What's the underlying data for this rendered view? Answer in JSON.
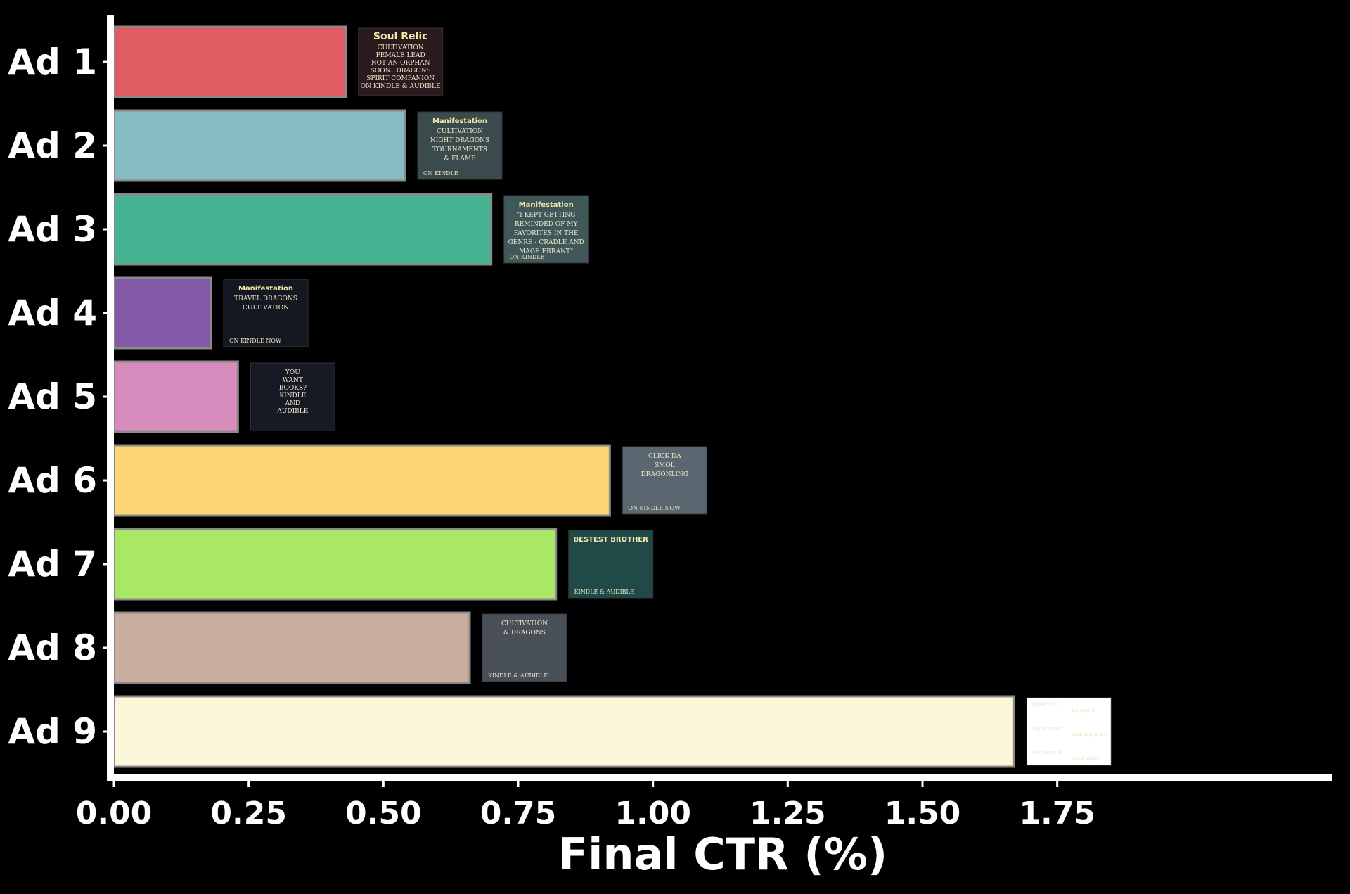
{
  "chart_data": {
    "type": "bar",
    "orientation": "horizontal",
    "categories": [
      "Ad 1",
      "Ad 2",
      "Ad 3",
      "Ad 4",
      "Ad 5",
      "Ad 6",
      "Ad 7",
      "Ad 8",
      "Ad 9"
    ],
    "values": [
      0.43,
      0.54,
      0.7,
      0.18,
      0.23,
      0.92,
      0.82,
      0.66,
      1.67
    ],
    "colors": [
      "#e05b62",
      "#86bcc4",
      "#46b393",
      "#8459a8",
      "#d68dbe",
      "#fdd573",
      "#a9e865",
      "#c8ae9f",
      "#fbf7d8"
    ],
    "xlabel": "Final CTR (%)",
    "ylabel": "",
    "title": "",
    "xlim": [
      0,
      1.9
    ],
    "xticks": [
      0,
      0.25,
      0.5,
      0.75,
      1.0,
      1.25,
      1.5,
      1.75
    ],
    "xtick_labels": [
      "0.00",
      "0.25",
      "0.50",
      "0.75",
      "1.00",
      "1.25",
      "1.50",
      "1.75"
    ],
    "grid": false,
    "background": "#000000",
    "text_color": "#ffffff"
  },
  "thumbnails": [
    {
      "title": "Soul Relic",
      "lines": [
        "CULTIVATION",
        "FEMALE LEAD",
        "NOT AN ORPHAN",
        "SOON...DRAGONS",
        "SPIRIT COMPANION",
        "ON KINDLE & AUDIBLE"
      ],
      "bg": "#2a1a1e"
    },
    {
      "title": "Manifestation",
      "lines": [
        "CULTIVATION",
        "NIGHT DRAGONS",
        "TOURNAMENTS",
        "& FLAME"
      ],
      "footer": "ON KINDLE",
      "bg": "#3b4a4c"
    },
    {
      "title": "Manifestation",
      "lines": [
        "\"I KEPT GETTING",
        "REMINDED OF MY",
        "FAVORITES IN THE",
        "GENRE - CRADLE AND",
        "MAGE ERRANT\""
      ],
      "footer": "ON KINDLE",
      "bg": "#40585a"
    },
    {
      "title": "Manifestation",
      "lines": [
        "TRAVEL DRAGONS",
        "CULTIVATION"
      ],
      "footer": "ON KINDLE NOW",
      "bg": "#141820"
    },
    {
      "title": "",
      "lines": [
        "YOU",
        "WANT",
        "BOOKS?",
        "KINDLE",
        "AND",
        "AUDIBLE"
      ],
      "bg": "#151a24"
    },
    {
      "title": "",
      "lines": [
        "CLICK DA",
        "SMOL",
        "DRAGONLING"
      ],
      "footer": "ON KINDLE NOW",
      "bg": "#5a6670"
    },
    {
      "title": "BESTEST BROTHER",
      "lines": [],
      "footer": "KINDLE & AUDIBLE",
      "bg": "#1f4a48"
    },
    {
      "title": "",
      "lines": [
        "CULTIVATION",
        "& DRAGONS"
      ],
      "footer": "KINDLE & AUDIBLE",
      "bg": "#4a5058"
    },
    {
      "title": "",
      "lines": [
        "lonely girl",
        "no power",
        "big brother",
        "with big brain",
        "eat heart of",
        "dead spirit",
        "profit?"
      ],
      "bg": "#ffffff"
    }
  ]
}
